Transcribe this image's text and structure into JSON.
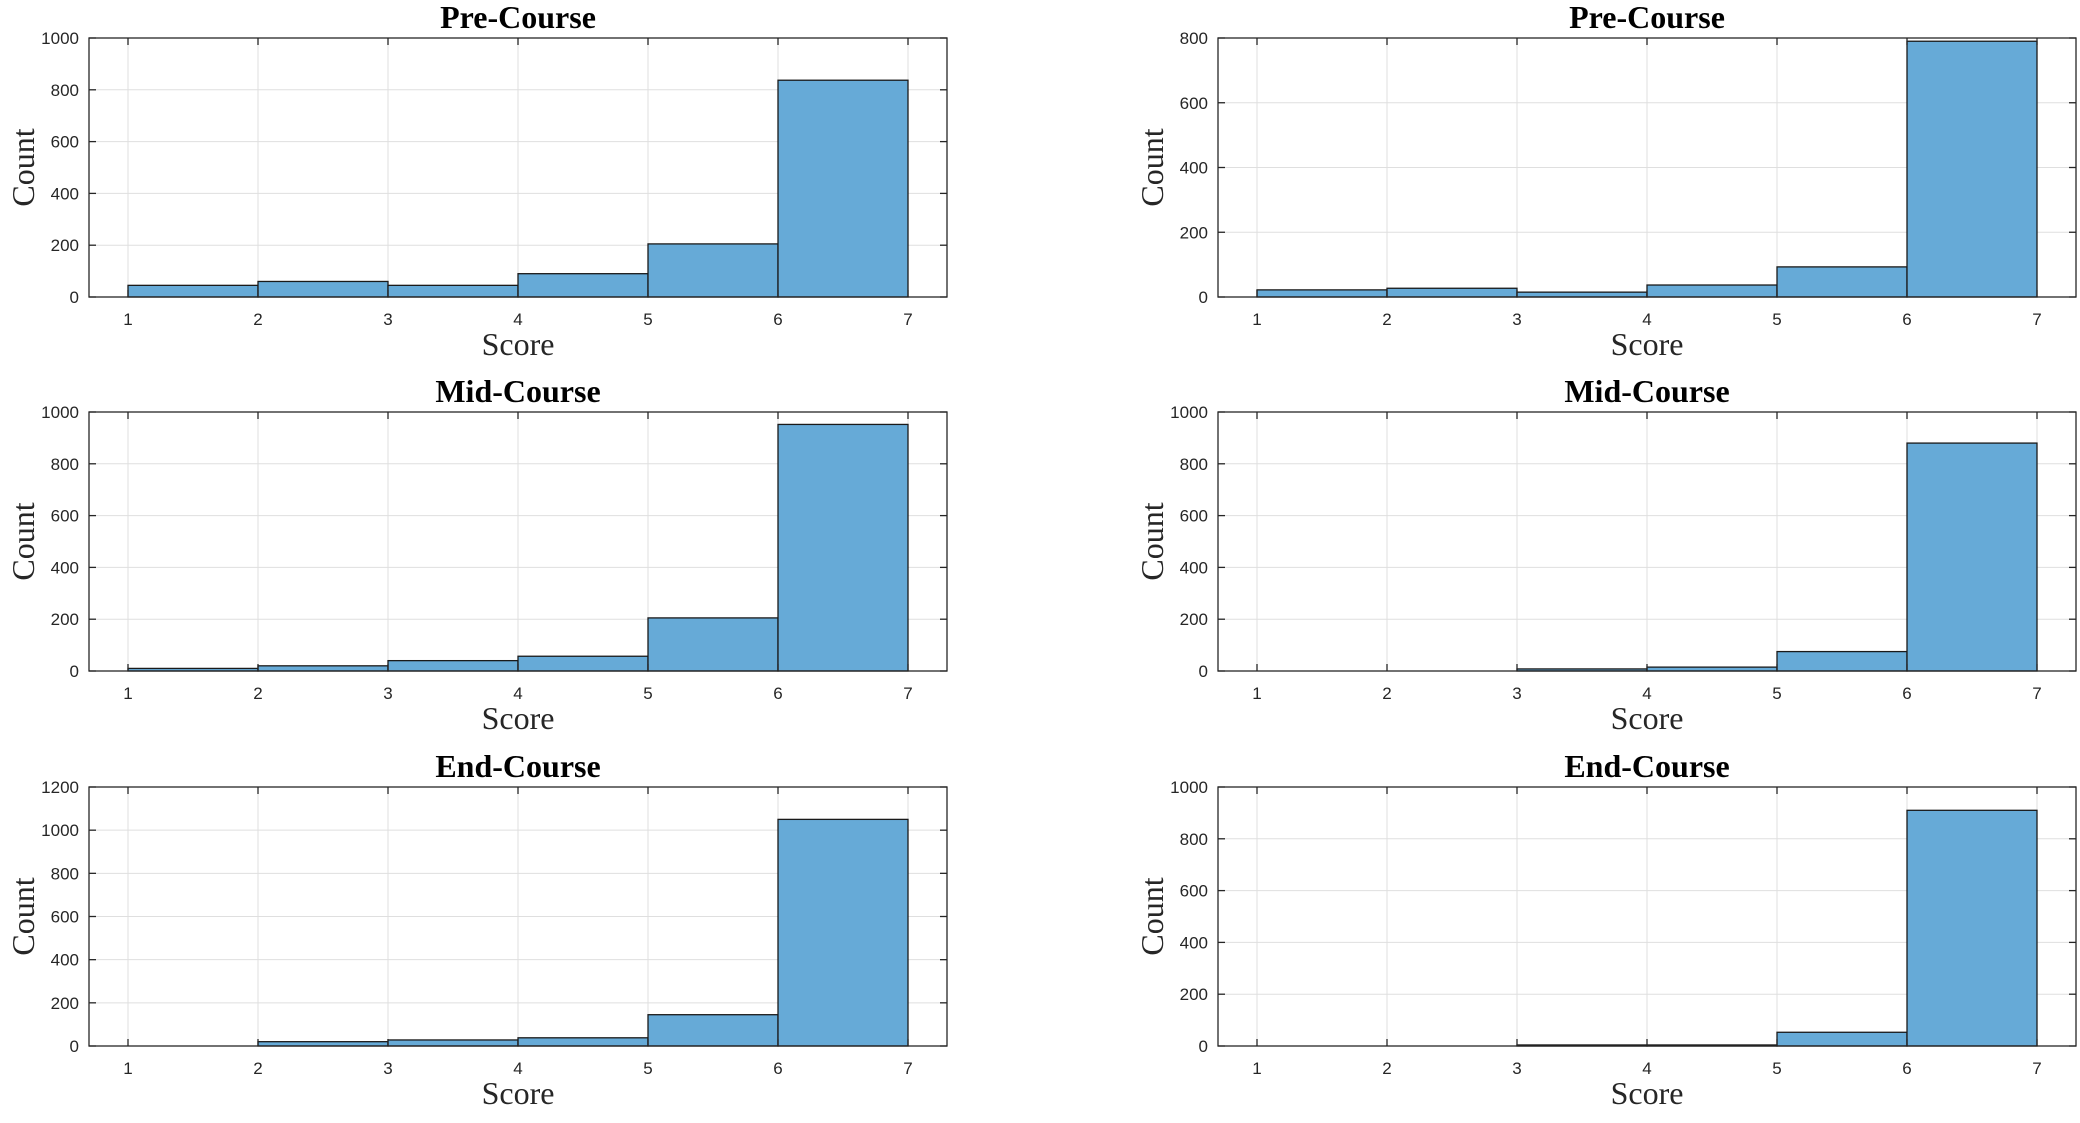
{
  "colors": {
    "bar_fill": "#66aad7",
    "bar_edge": "#1a1a1a",
    "axis": "#262626",
    "grid": "#dfdfdf"
  },
  "chart_data": [
    {
      "type": "bar",
      "title": "Pre-Course",
      "xlabel": "Score",
      "ylabel": "Count",
      "bin_edges": [
        1,
        2,
        3,
        4,
        5,
        6,
        7
      ],
      "values": [
        45,
        60,
        45,
        90,
        205,
        837
      ],
      "xlim": [
        0.7,
        7.3
      ],
      "ylim": [
        0,
        1000
      ],
      "yticks": [
        0,
        200,
        400,
        600,
        800,
        1000
      ],
      "xticks": [
        1,
        2,
        3,
        4,
        5,
        6,
        7
      ],
      "grid": true
    },
    {
      "type": "bar",
      "title": "Pre-Course",
      "xlabel": "Score",
      "ylabel": "Count",
      "bin_edges": [
        1,
        2,
        3,
        4,
        5,
        6,
        7
      ],
      "values": [
        22,
        27,
        15,
        37,
        93,
        790
      ],
      "xlim": [
        0.7,
        7.3
      ],
      "ylim": [
        0,
        800
      ],
      "yticks": [
        0,
        200,
        400,
        600,
        800
      ],
      "xticks": [
        1,
        2,
        3,
        4,
        5,
        6,
        7
      ],
      "grid": true
    },
    {
      "type": "bar",
      "title": "Mid-Course",
      "xlabel": "Score",
      "ylabel": "Count",
      "bin_edges": [
        1,
        2,
        3,
        4,
        5,
        6,
        7
      ],
      "values": [
        10,
        20,
        40,
        57,
        205,
        952
      ],
      "xlim": [
        0.7,
        7.3
      ],
      "ylim": [
        0,
        1000
      ],
      "yticks": [
        0,
        200,
        400,
        600,
        800,
        1000
      ],
      "xticks": [
        1,
        2,
        3,
        4,
        5,
        6,
        7
      ],
      "grid": true
    },
    {
      "type": "bar",
      "title": "Mid-Course",
      "xlabel": "Score",
      "ylabel": "Count",
      "bin_edges": [
        1,
        2,
        3,
        4,
        5,
        6,
        7
      ],
      "values": [
        0,
        0,
        8,
        15,
        75,
        880
      ],
      "xlim": [
        0.7,
        7.3
      ],
      "ylim": [
        0,
        1000
      ],
      "yticks": [
        0,
        200,
        400,
        600,
        800,
        1000
      ],
      "xticks": [
        1,
        2,
        3,
        4,
        5,
        6,
        7
      ],
      "grid": true
    },
    {
      "type": "bar",
      "title": "End-Course",
      "xlabel": "Score",
      "ylabel": "Count",
      "bin_edges": [
        1,
        2,
        3,
        4,
        5,
        6,
        7
      ],
      "values": [
        0,
        20,
        28,
        38,
        145,
        1050
      ],
      "xlim": [
        0.7,
        7.3
      ],
      "ylim": [
        0,
        1200
      ],
      "yticks": [
        0,
        200,
        400,
        600,
        800,
        1000,
        1200
      ],
      "xticks": [
        1,
        2,
        3,
        4,
        5,
        6,
        7
      ],
      "grid": true
    },
    {
      "type": "bar",
      "title": "End-Course",
      "xlabel": "Score",
      "ylabel": "Count",
      "bin_edges": [
        1,
        2,
        3,
        4,
        5,
        6,
        7
      ],
      "values": [
        0,
        0,
        4,
        4,
        53,
        910
      ],
      "xlim": [
        0.7,
        7.3
      ],
      "ylim": [
        0,
        1000
      ],
      "yticks": [
        0,
        200,
        400,
        600,
        800,
        1000
      ],
      "xticks": [
        1,
        2,
        3,
        4,
        5,
        6,
        7
      ],
      "grid": true
    }
  ]
}
